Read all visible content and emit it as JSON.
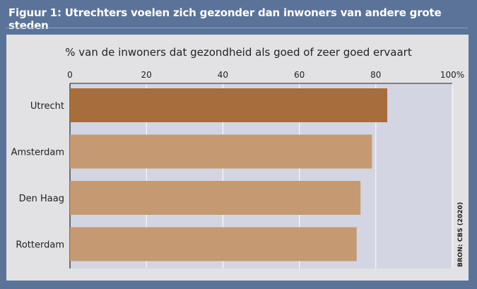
{
  "header": {
    "title": "Figuur 1: Utrechters voelen zich gezonder dan inwoners van andere grote steden"
  },
  "source_label": "BRON: CBS (2020)",
  "colors": {
    "background": "#5b7399",
    "panel": "#e2e2e4",
    "plot_area": "#d3d6e2",
    "highlight_bar": "#a86d3c",
    "bar": "#c59a72"
  },
  "chart_data": {
    "type": "bar",
    "orientation": "horizontal",
    "title": "% van de inwoners dat gezondheid als goed of zeer goed ervaart",
    "categories": [
      "Utrecht",
      "Amsterdam",
      "Den Haag",
      "Rotterdam"
    ],
    "values": [
      83,
      79,
      76,
      75
    ],
    "highlight": "Utrecht",
    "xlim": [
      0,
      100
    ],
    "ticks": [
      0,
      20,
      40,
      60,
      80,
      100
    ],
    "tick_labels": [
      "0",
      "20",
      "40",
      "60",
      "80",
      "100%"
    ],
    "grid": true
  }
}
